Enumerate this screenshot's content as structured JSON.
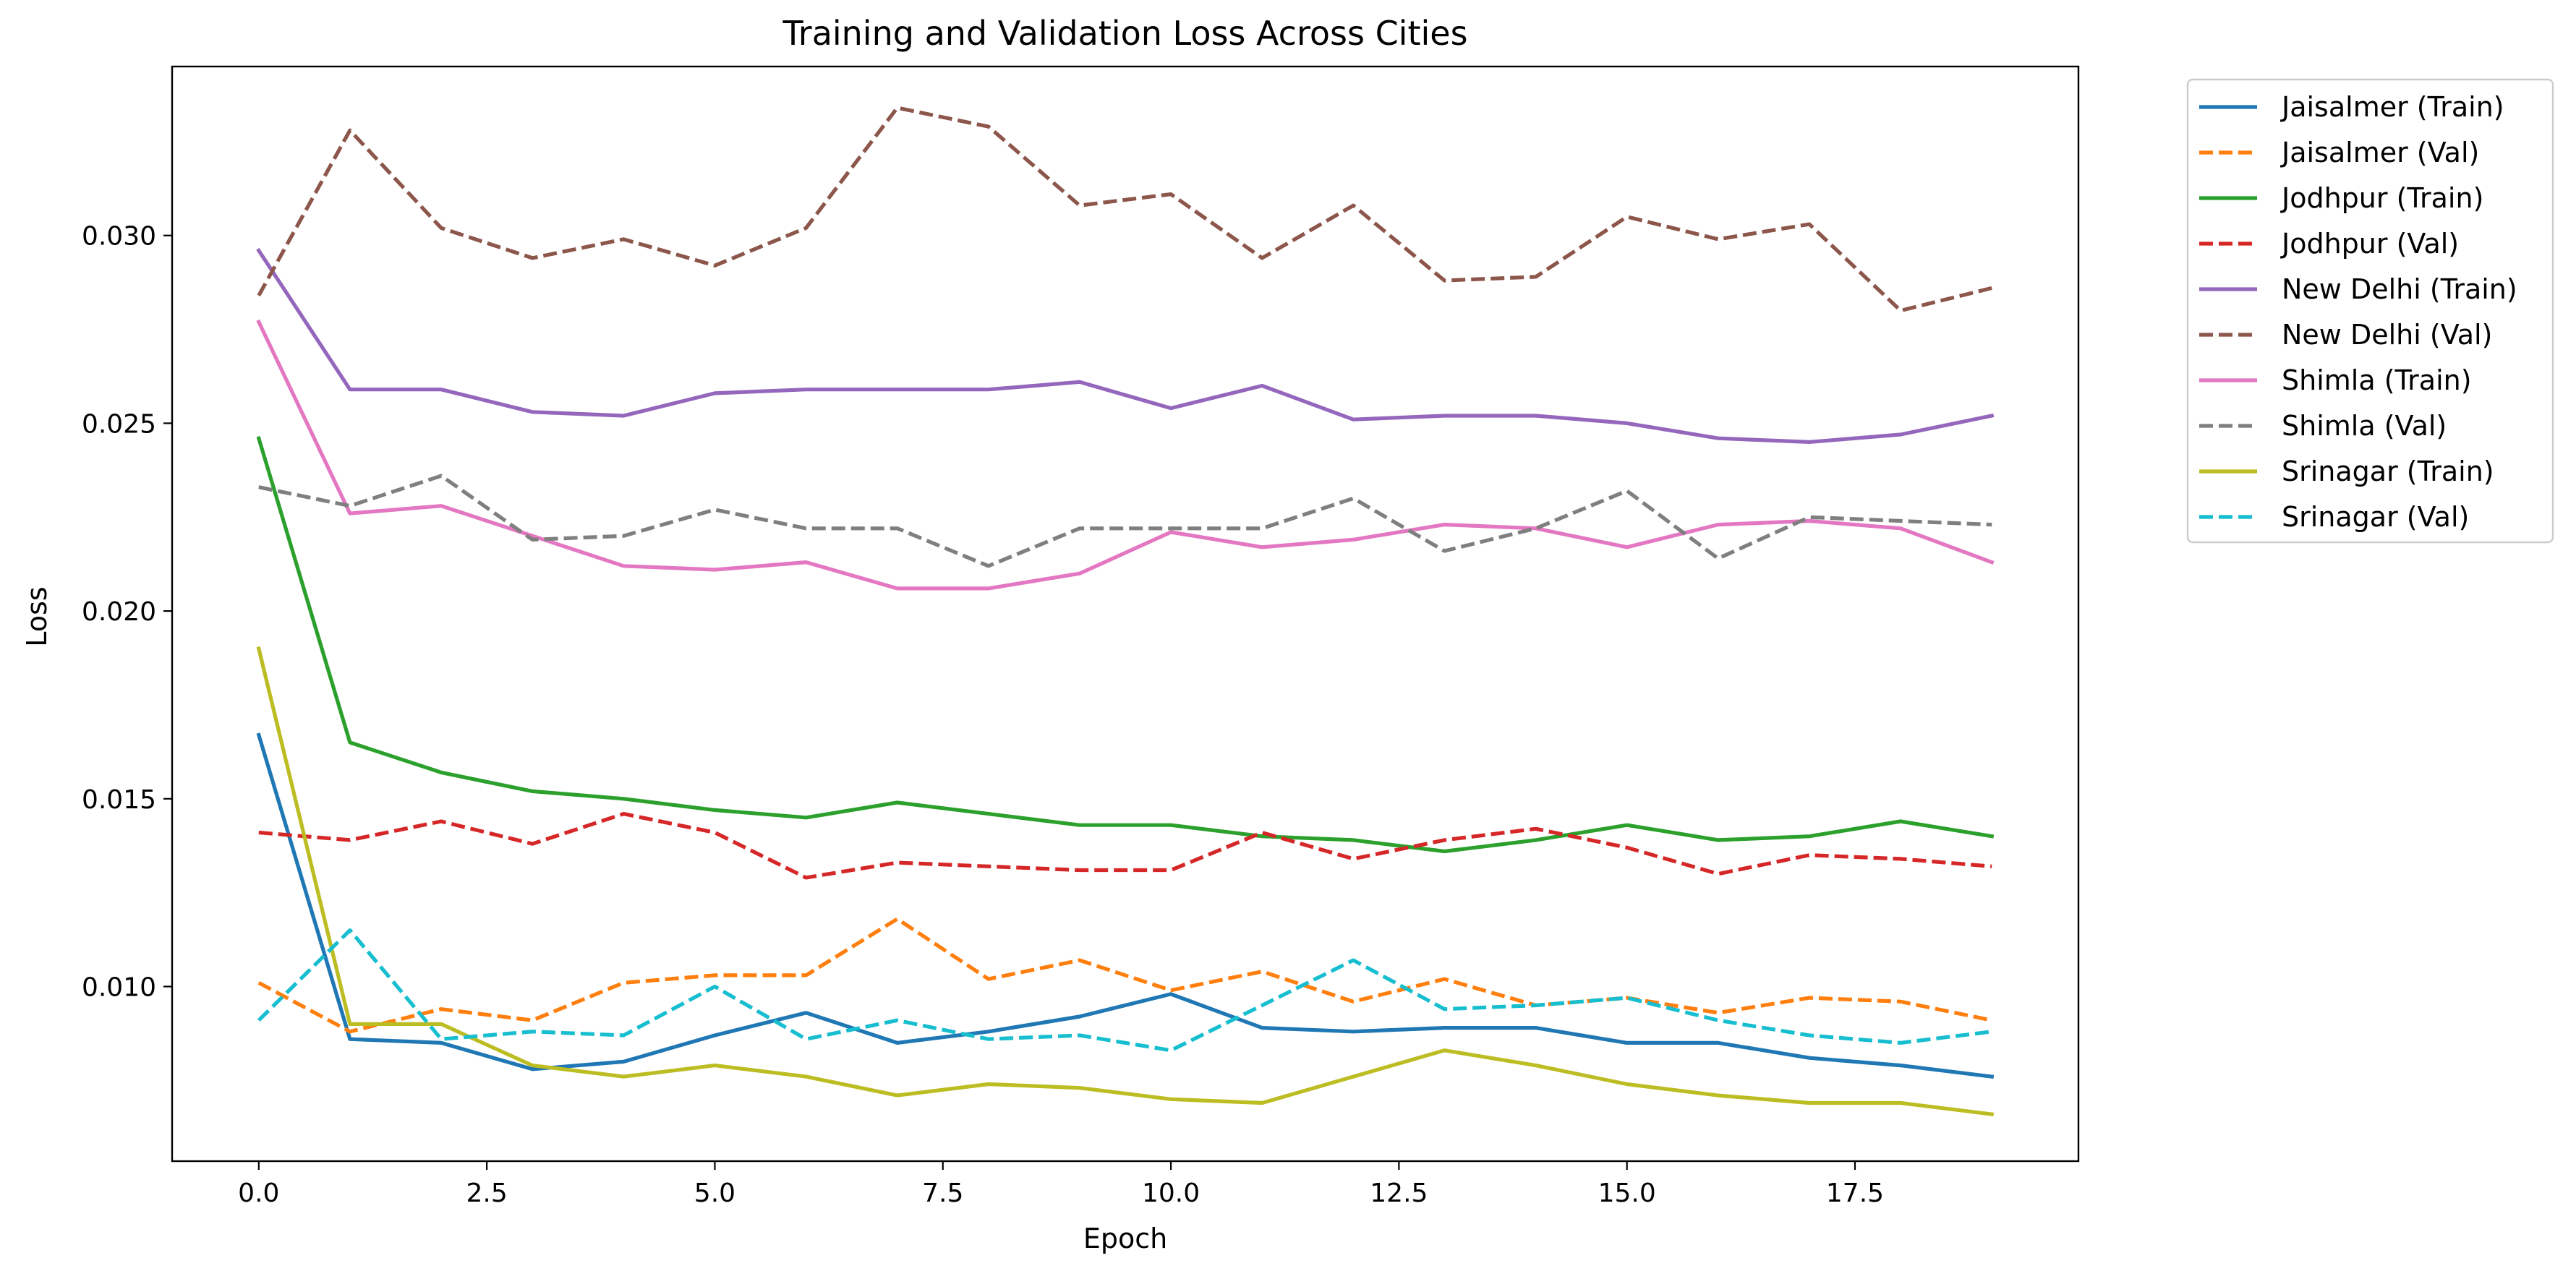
{
  "chart_data": {
    "type": "line",
    "title": "Training and Validation Loss Across Cities",
    "xlabel": "Epoch",
    "ylabel": "Loss",
    "xlim": [
      -0.95,
      19.95
    ],
    "ylim": [
      0.00535,
      0.0345
    ],
    "xticks": [
      0.0,
      2.5,
      5.0,
      7.5,
      10.0,
      12.5,
      15.0,
      17.5
    ],
    "xtick_labels": [
      "0.0",
      "2.5",
      "5.0",
      "7.5",
      "10.0",
      "12.5",
      "15.0",
      "17.5"
    ],
    "yticks": [
      0.01,
      0.015,
      0.02,
      0.025,
      0.03
    ],
    "ytick_labels": [
      "0.010",
      "0.015",
      "0.020",
      "0.025",
      "0.030"
    ],
    "grid": false,
    "legend_position": "outside right, top",
    "x": [
      0,
      1,
      2,
      3,
      4,
      5,
      6,
      7,
      8,
      9,
      10,
      11,
      12,
      13,
      14,
      15,
      16,
      17,
      18,
      19
    ],
    "series": [
      {
        "name": "Jaisalmer (Train)",
        "color": "#1f77b4",
        "dash": "solid",
        "values": [
          0.0167,
          0.0086,
          0.0085,
          0.0078,
          0.008,
          0.0087,
          0.0093,
          0.0085,
          0.0088,
          0.0092,
          0.0098,
          0.0089,
          0.0088,
          0.0089,
          0.0089,
          0.0085,
          0.0085,
          0.0081,
          0.0079,
          0.0076
        ]
      },
      {
        "name": "Jaisalmer (Val)",
        "color": "#ff7f0e",
        "dash": "dashed",
        "values": [
          0.0101,
          0.0088,
          0.0094,
          0.0091,
          0.0101,
          0.0103,
          0.0103,
          0.0118,
          0.0102,
          0.0107,
          0.0099,
          0.0104,
          0.0096,
          0.0102,
          0.0095,
          0.0097,
          0.0093,
          0.0097,
          0.0096,
          0.0091
        ]
      },
      {
        "name": "Jodhpur (Train)",
        "color": "#2ca02c",
        "dash": "solid",
        "values": [
          0.0246,
          0.0165,
          0.0157,
          0.0152,
          0.015,
          0.0147,
          0.0145,
          0.0149,
          0.0146,
          0.0143,
          0.0143,
          0.014,
          0.0139,
          0.0136,
          0.0139,
          0.0143,
          0.0139,
          0.014,
          0.0144,
          0.014
        ]
      },
      {
        "name": "Jodhpur (Val)",
        "color": "#d62728",
        "dash": "dashed",
        "values": [
          0.0141,
          0.0139,
          0.0144,
          0.0138,
          0.0146,
          0.0141,
          0.0129,
          0.0133,
          0.0132,
          0.0131,
          0.0131,
          0.0141,
          0.0134,
          0.0139,
          0.0142,
          0.0137,
          0.013,
          0.0135,
          0.0134,
          0.0132
        ]
      },
      {
        "name": "New Delhi (Train)",
        "color": "#9467bd",
        "dash": "solid",
        "values": [
          0.0296,
          0.0259,
          0.0259,
          0.0253,
          0.0252,
          0.0258,
          0.0259,
          0.0259,
          0.0259,
          0.0261,
          0.0254,
          0.026,
          0.0251,
          0.0252,
          0.0252,
          0.025,
          0.0246,
          0.0245,
          0.0247,
          0.0252
        ]
      },
      {
        "name": "New Delhi (Val)",
        "color": "#8c564b",
        "dash": "dashed",
        "values": [
          0.0284,
          0.0328,
          0.0302,
          0.0294,
          0.0299,
          0.0292,
          0.0302,
          0.0334,
          0.0329,
          0.0308,
          0.0311,
          0.0294,
          0.0308,
          0.0288,
          0.0289,
          0.0305,
          0.0299,
          0.0303,
          0.028,
          0.0286
        ]
      },
      {
        "name": "Shimla (Train)",
        "color": "#e377c2",
        "dash": "solid",
        "values": [
          0.0277,
          0.0226,
          0.0228,
          0.022,
          0.0212,
          0.0211,
          0.0213,
          0.0206,
          0.0206,
          0.021,
          0.0221,
          0.0217,
          0.0219,
          0.0223,
          0.0222,
          0.0217,
          0.0223,
          0.0224,
          0.0222,
          0.0213
        ]
      },
      {
        "name": "Shimla (Val)",
        "color": "#7f7f7f",
        "dash": "dashed",
        "values": [
          0.0233,
          0.0228,
          0.0236,
          0.0219,
          0.022,
          0.0227,
          0.0222,
          0.0222,
          0.0212,
          0.0222,
          0.0222,
          0.0222,
          0.023,
          0.0216,
          0.0222,
          0.0232,
          0.0214,
          0.0225,
          0.0224,
          0.0223
        ]
      },
      {
        "name": "Srinagar (Train)",
        "color": "#bcbd22",
        "dash": "solid",
        "values": [
          0.019,
          0.009,
          0.009,
          0.0079,
          0.0076,
          0.0079,
          0.0076,
          0.0071,
          0.0074,
          0.0073,
          0.007,
          0.0069,
          0.0076,
          0.0083,
          0.0079,
          0.0074,
          0.0071,
          0.0069,
          0.0069,
          0.0066
        ]
      },
      {
        "name": "Srinagar (Val)",
        "color": "#17becf",
        "dash": "dashed",
        "values": [
          0.0091,
          0.0115,
          0.0086,
          0.0088,
          0.0087,
          0.01,
          0.0086,
          0.0091,
          0.0086,
          0.0087,
          0.0083,
          0.0095,
          0.0107,
          0.0094,
          0.0095,
          0.0097,
          0.0091,
          0.0087,
          0.0085,
          0.0088
        ]
      }
    ]
  }
}
